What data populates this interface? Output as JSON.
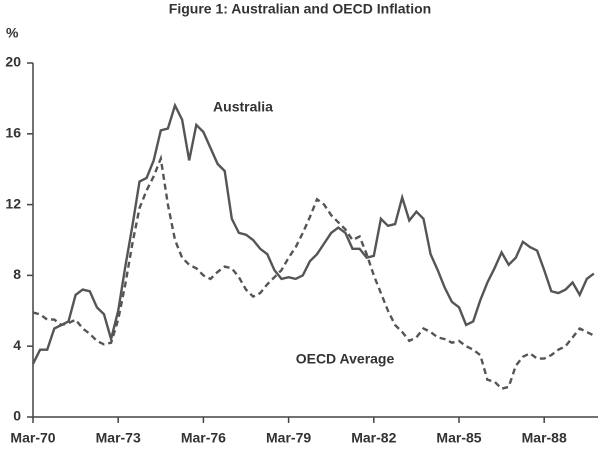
{
  "chart_data": {
    "type": "line",
    "title": "Figure 1: Australian and OECD Inflation",
    "y_label": "%",
    "categories": [
      "Mar-70",
      null,
      null,
      null,
      null,
      null,
      null,
      null,
      null,
      null,
      null,
      null,
      "Mar-73",
      null,
      null,
      null,
      null,
      null,
      null,
      null,
      null,
      null,
      null,
      null,
      "Mar-76",
      null,
      null,
      null,
      null,
      null,
      null,
      null,
      null,
      null,
      null,
      null,
      "Mar-79",
      null,
      null,
      null,
      null,
      null,
      null,
      null,
      null,
      null,
      null,
      null,
      "Mar-82",
      null,
      null,
      null,
      null,
      null,
      null,
      null,
      null,
      null,
      null,
      null,
      "Mar-85",
      null,
      null,
      null,
      null,
      null,
      null,
      null,
      null,
      null,
      null,
      null,
      "Mar-88",
      null,
      null,
      null,
      null,
      null,
      null,
      null
    ],
    "series": [
      {
        "name": "Australia",
        "color": "#555555",
        "dash": false,
        "values": [
          3.0,
          3.8,
          3.8,
          5.0,
          5.2,
          5.4,
          6.9,
          7.2,
          7.1,
          6.2,
          5.8,
          4.4,
          6.0,
          8.5,
          10.8,
          13.3,
          13.5,
          14.5,
          16.2,
          16.3,
          17.6,
          16.8,
          14.5,
          16.5,
          16.1,
          15.2,
          14.3,
          13.9,
          11.2,
          10.4,
          10.3,
          10.0,
          9.5,
          9.2,
          8.3,
          7.8,
          7.9,
          7.8,
          8.0,
          8.8,
          9.2,
          9.8,
          10.4,
          10.7,
          10.4,
          9.5,
          9.5,
          9.0,
          9.1,
          11.2,
          10.8,
          10.9,
          12.4,
          11.1,
          11.6,
          11.2,
          9.2,
          8.3,
          7.3,
          6.5,
          6.2,
          5.2,
          5.4,
          6.6,
          7.6,
          8.4,
          9.3,
          8.6,
          9.0,
          9.9,
          9.6,
          9.4,
          8.3,
          7.1,
          7.0,
          7.2,
          7.6,
          6.9,
          7.8,
          8.1
        ]
      },
      {
        "name": "OECD Average",
        "color": "#555555",
        "dash": true,
        "values": [
          5.9,
          5.8,
          5.5,
          5.5,
          5.2,
          5.3,
          5.5,
          5.0,
          4.7,
          4.3,
          4.1,
          4.2,
          5.5,
          7.5,
          9.8,
          11.8,
          12.8,
          13.6,
          14.6,
          12.0,
          10.0,
          9.0,
          8.6,
          8.4,
          8.0,
          7.8,
          8.2,
          8.5,
          8.4,
          7.9,
          7.2,
          6.8,
          7.0,
          7.5,
          7.9,
          8.3,
          9.0,
          9.6,
          10.4,
          11.3,
          12.3,
          12.0,
          11.4,
          11.0,
          10.6,
          10.0,
          10.2,
          9.2,
          8.0,
          7.0,
          6.0,
          5.2,
          4.8,
          4.3,
          4.5,
          5.0,
          4.8,
          4.5,
          4.4,
          4.2,
          4.3,
          4.0,
          3.8,
          3.5,
          2.1,
          2.0,
          1.6,
          1.7,
          2.9,
          3.4,
          3.6,
          3.3,
          3.3,
          3.5,
          3.8,
          4.0,
          4.5,
          5.0,
          4.8,
          4.6
        ]
      }
    ],
    "ylim": [
      0,
      20
    ],
    "yticks": [
      0,
      4,
      8,
      12,
      16,
      20
    ]
  }
}
